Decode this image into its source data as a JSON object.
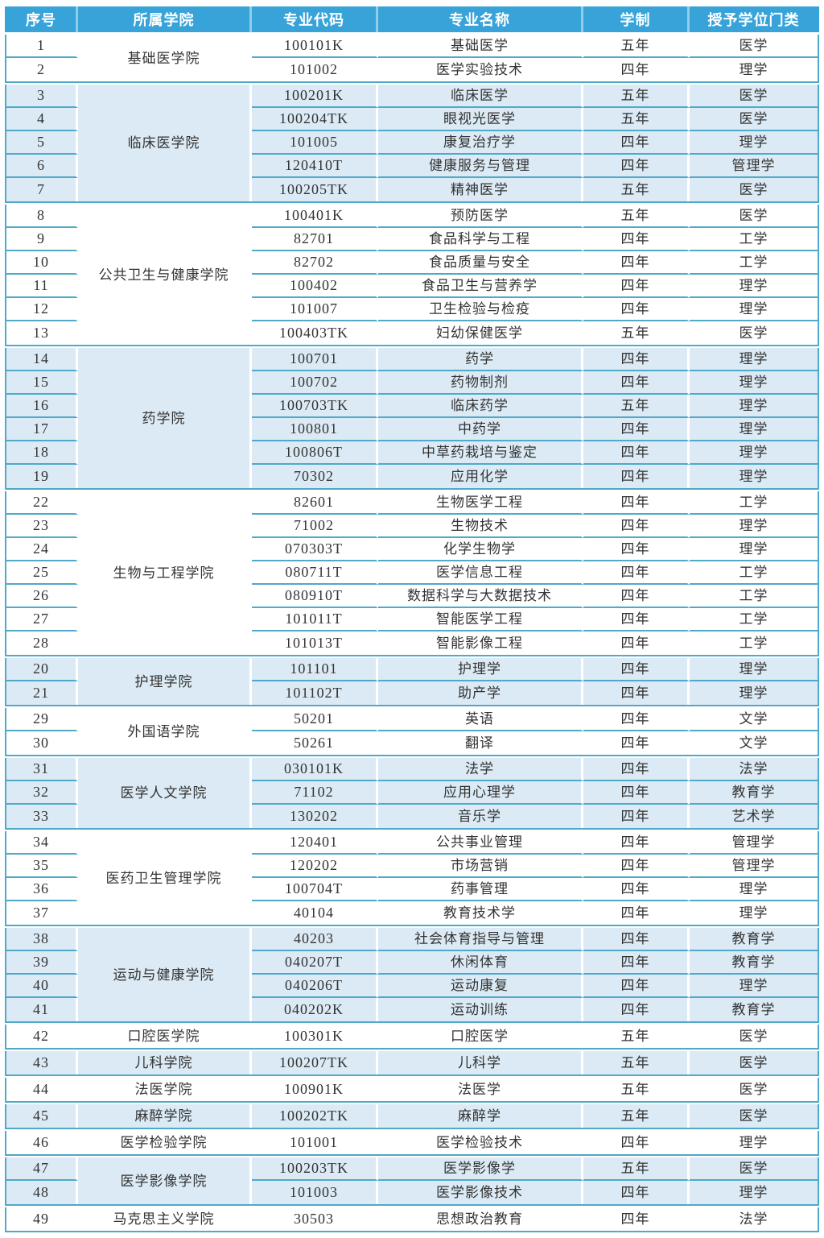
{
  "table": {
    "columns": [
      "序号",
      "所属学院",
      "专业代码",
      "专业名称",
      "学制",
      "授予学位门类"
    ],
    "groups": [
      {
        "college": "基础医学院",
        "shade": "white",
        "rows": [
          {
            "no": "1",
            "code": "100101K",
            "major": "基础医学",
            "duration": "五年",
            "degree": "医学"
          },
          {
            "no": "2",
            "code": "101002",
            "major": "医学实验技术",
            "duration": "四年",
            "degree": "理学"
          }
        ]
      },
      {
        "college": "临床医学院",
        "shade": "blue",
        "rows": [
          {
            "no": "3",
            "code": "100201K",
            "major": "临床医学",
            "duration": "五年",
            "degree": "医学"
          },
          {
            "no": "4",
            "code": "100204TK",
            "major": "眼视光医学",
            "duration": "五年",
            "degree": "医学"
          },
          {
            "no": "5",
            "code": "101005",
            "major": "康复治疗学",
            "duration": "四年",
            "degree": "理学"
          },
          {
            "no": "6",
            "code": "120410T",
            "major": "健康服务与管理",
            "duration": "四年",
            "degree": "管理学"
          },
          {
            "no": "7",
            "code": "100205TK",
            "major": "精神医学",
            "duration": "五年",
            "degree": "医学"
          }
        ]
      },
      {
        "college": "公共卫生与健康学院",
        "shade": "white",
        "rows": [
          {
            "no": "8",
            "code": "100401K",
            "major": "预防医学",
            "duration": "五年",
            "degree": "医学"
          },
          {
            "no": "9",
            "code": "82701",
            "major": "食品科学与工程",
            "duration": "四年",
            "degree": "工学"
          },
          {
            "no": "10",
            "code": "82702",
            "major": "食品质量与安全",
            "duration": "四年",
            "degree": "工学"
          },
          {
            "no": "11",
            "code": "100402",
            "major": "食品卫生与营养学",
            "duration": "四年",
            "degree": "理学"
          },
          {
            "no": "12",
            "code": "101007",
            "major": "卫生检验与检疫",
            "duration": "四年",
            "degree": "理学"
          },
          {
            "no": "13",
            "code": "100403TK",
            "major": "妇幼保健医学",
            "duration": "五年",
            "degree": "医学"
          }
        ]
      },
      {
        "college": "药学院",
        "shade": "blue",
        "rows": [
          {
            "no": "14",
            "code": "100701",
            "major": "药学",
            "duration": "四年",
            "degree": "理学"
          },
          {
            "no": "15",
            "code": "100702",
            "major": "药物制剂",
            "duration": "四年",
            "degree": "理学"
          },
          {
            "no": "16",
            "code": "100703TK",
            "major": "临床药学",
            "duration": "五年",
            "degree": "理学"
          },
          {
            "no": "17",
            "code": "100801",
            "major": "中药学",
            "duration": "四年",
            "degree": "理学"
          },
          {
            "no": "18",
            "code": "100806T",
            "major": "中草药栽培与鉴定",
            "duration": "四年",
            "degree": "理学"
          },
          {
            "no": "19",
            "code": "70302",
            "major": "应用化学",
            "duration": "四年",
            "degree": "理学"
          }
        ]
      },
      {
        "college": "生物与工程学院",
        "shade": "white",
        "rows": [
          {
            "no": "22",
            "code": "82601",
            "major": "生物医学工程",
            "duration": "四年",
            "degree": "工学"
          },
          {
            "no": "23",
            "code": "71002",
            "major": "生物技术",
            "duration": "四年",
            "degree": "理学"
          },
          {
            "no": "24",
            "code": "070303T",
            "major": "化学生物学",
            "duration": "四年",
            "degree": "理学"
          },
          {
            "no": "25",
            "code": "080711T",
            "major": "医学信息工程",
            "duration": "四年",
            "degree": "工学"
          },
          {
            "no": "26",
            "code": "080910T",
            "major": "数据科学与大数据技术",
            "duration": "四年",
            "degree": "工学"
          },
          {
            "no": "27",
            "code": "101011T",
            "major": "智能医学工程",
            "duration": "四年",
            "degree": "工学"
          },
          {
            "no": "28",
            "code": "101013T",
            "major": "智能影像工程",
            "duration": "四年",
            "degree": "工学"
          }
        ]
      },
      {
        "college": "护理学院",
        "shade": "blue",
        "rows": [
          {
            "no": "20",
            "code": "101101",
            "major": "护理学",
            "duration": "四年",
            "degree": "理学"
          },
          {
            "no": "21",
            "code": "101102T",
            "major": "助产学",
            "duration": "四年",
            "degree": "理学"
          }
        ]
      },
      {
        "college": "外国语学院",
        "shade": "white",
        "rows": [
          {
            "no": "29",
            "code": "50201",
            "major": "英语",
            "duration": "四年",
            "degree": "文学"
          },
          {
            "no": "30",
            "code": "50261",
            "major": "翻译",
            "duration": "四年",
            "degree": "文学"
          }
        ]
      },
      {
        "college": "医学人文学院",
        "shade": "blue",
        "rows": [
          {
            "no": "31",
            "code": "030101K",
            "major": "法学",
            "duration": "四年",
            "degree": "法学"
          },
          {
            "no": "32",
            "code": "71102",
            "major": "应用心理学",
            "duration": "四年",
            "degree": "教育学"
          },
          {
            "no": "33",
            "code": "130202",
            "major": "音乐学",
            "duration": "四年",
            "degree": "艺术学"
          }
        ]
      },
      {
        "college": "医药卫生管理学院",
        "shade": "white",
        "rows": [
          {
            "no": "34",
            "code": "120401",
            "major": "公共事业管理",
            "duration": "四年",
            "degree": "管理学"
          },
          {
            "no": "35",
            "code": "120202",
            "major": "市场营销",
            "duration": "四年",
            "degree": "管理学"
          },
          {
            "no": "36",
            "code": "100704T",
            "major": "药事管理",
            "duration": "四年",
            "degree": "理学"
          },
          {
            "no": "37",
            "code": "40104",
            "major": "教育技术学",
            "duration": "四年",
            "degree": "理学"
          }
        ]
      },
      {
        "college": "运动与健康学院",
        "shade": "blue",
        "rows": [
          {
            "no": "38",
            "code": "40203",
            "major": "社会体育指导与管理",
            "duration": "四年",
            "degree": "教育学"
          },
          {
            "no": "39",
            "code": "040207T",
            "major": "休闲体育",
            "duration": "四年",
            "degree": "教育学"
          },
          {
            "no": "40",
            "code": "040206T",
            "major": "运动康复",
            "duration": "四年",
            "degree": "理学"
          },
          {
            "no": "41",
            "code": "040202K",
            "major": "运动训练",
            "duration": "四年",
            "degree": "教育学"
          }
        ]
      },
      {
        "college": "口腔医学院",
        "shade": "white",
        "rows": [
          {
            "no": "42",
            "code": "100301K",
            "major": "口腔医学",
            "duration": "五年",
            "degree": "医学"
          }
        ]
      },
      {
        "college": "儿科学院",
        "shade": "blue",
        "rows": [
          {
            "no": "43",
            "code": "100207TK",
            "major": "儿科学",
            "duration": "五年",
            "degree": "医学"
          }
        ]
      },
      {
        "college": "法医学院",
        "shade": "white",
        "rows": [
          {
            "no": "44",
            "code": "100901K",
            "major": "法医学",
            "duration": "五年",
            "degree": "医学"
          }
        ]
      },
      {
        "college": "麻醉学院",
        "shade": "blue",
        "rows": [
          {
            "no": "45",
            "code": "100202TK",
            "major": "麻醉学",
            "duration": "五年",
            "degree": "医学"
          }
        ]
      },
      {
        "college": "医学检验学院",
        "shade": "white",
        "rows": [
          {
            "no": "46",
            "code": "101001",
            "major": "医学检验技术",
            "duration": "四年",
            "degree": "理学"
          }
        ]
      },
      {
        "college": "医学影像学院",
        "shade": "blue",
        "rows": [
          {
            "no": "47",
            "code": "100203TK",
            "major": "医学影像学",
            "duration": "五年",
            "degree": "医学"
          },
          {
            "no": "48",
            "code": "101003",
            "major": "医学影像技术",
            "duration": "四年",
            "degree": "理学"
          }
        ]
      },
      {
        "college": "马克思主义学院",
        "shade": "white",
        "rows": [
          {
            "no": "49",
            "code": "30503",
            "major": "思想政治教育",
            "duration": "四年",
            "degree": "法学"
          }
        ]
      }
    ]
  },
  "colors": {
    "header_bg": "#38A3D8",
    "header_text": "#FFFFFF",
    "row_band_blue": "#DBEAF4",
    "row_band_white": "#FFFFFF",
    "grid_line": "#4FA9C8",
    "body_text": "#333333"
  }
}
